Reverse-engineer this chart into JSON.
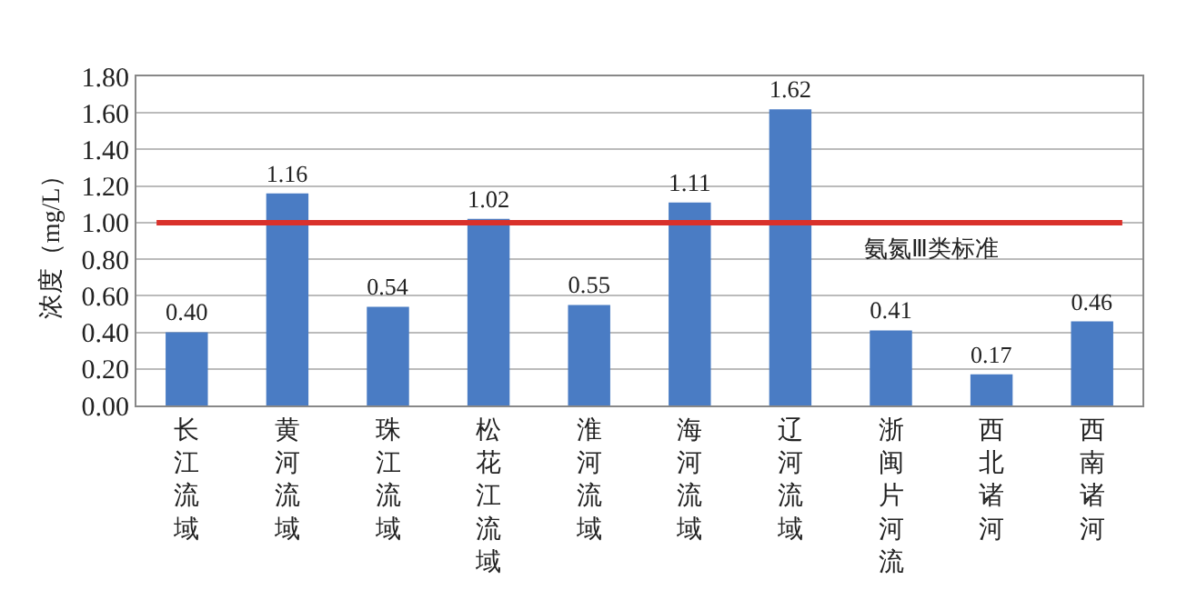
{
  "chart_data": {
    "type": "bar",
    "ylabel": "浓度（mg/L）",
    "categories": [
      "长江流域",
      "黄河流域",
      "珠江流域",
      "松花江流域",
      "淮河流域",
      "海河流域",
      "辽河流域",
      "浙闽片河流",
      "西北诸河",
      "西南诸河"
    ],
    "values": [
      0.4,
      1.16,
      0.54,
      1.02,
      0.55,
      1.11,
      1.62,
      0.41,
      0.17,
      0.46
    ],
    "value_labels": [
      "0.40",
      "1.16",
      "0.54",
      "1.02",
      "0.55",
      "1.11",
      "1.62",
      "0.41",
      "0.17",
      "0.46"
    ],
    "color": "#4a7cc4",
    "ylim": [
      0,
      1.8
    ],
    "yticks": [
      "0.00",
      "0.20",
      "0.40",
      "0.60",
      "0.80",
      "1.00",
      "1.20",
      "1.40",
      "1.60",
      "1.80"
    ],
    "grid": "y",
    "ref_lines": [
      {
        "axis": "y",
        "value": 1.0,
        "label": "氨氮Ⅲ类标准",
        "color": "#d9312b",
        "line_style": "solid"
      }
    ]
  }
}
